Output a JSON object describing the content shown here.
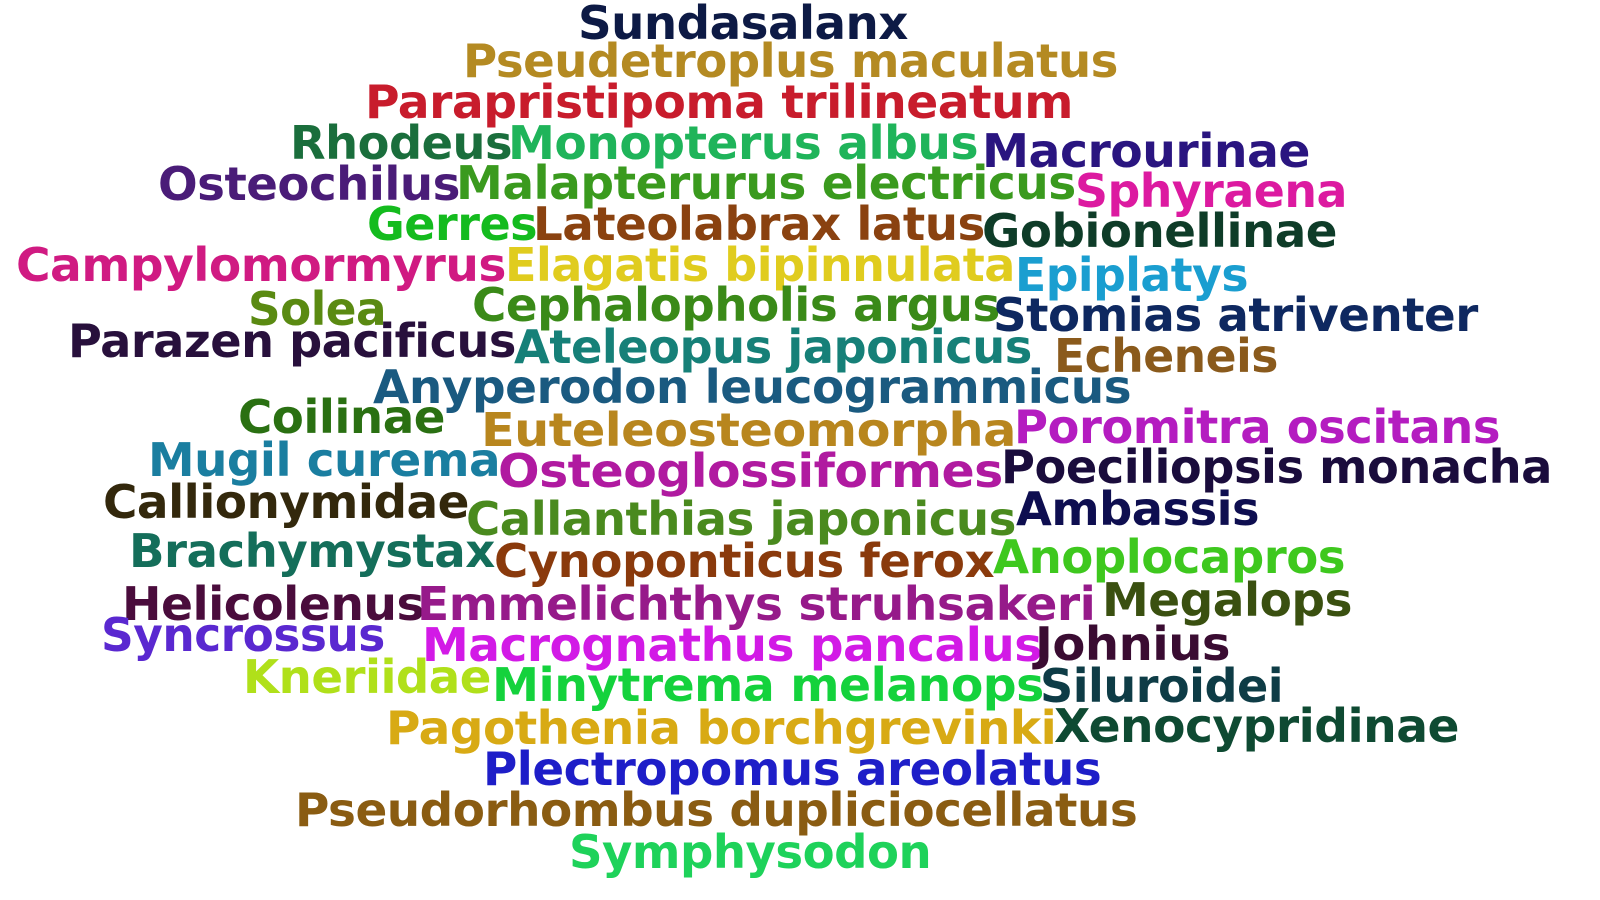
{
  "words": [
    {
      "text": "Sundasalanx",
      "color": "#0d1a45"
    },
    {
      "text": "Pseudetroplus maculatus",
      "color": "#b48a22"
    },
    {
      "text": "Parapristipoma trilineatum",
      "color": "#c81c2c"
    },
    {
      "text": "Rhodeus",
      "color": "#1a6e3c"
    },
    {
      "text": "Monopterus albus",
      "color": "#1fb45a"
    },
    {
      "text": "Macrourinae",
      "color": "#2a1580"
    },
    {
      "text": "Osteochilus",
      "color": "#4a1c78"
    },
    {
      "text": "Malapterurus electricus",
      "color": "#3a9a1e"
    },
    {
      "text": "Sphyraena",
      "color": "#dc1aa0"
    },
    {
      "text": "Gerres",
      "color": "#14bb1e"
    },
    {
      "text": "Lateolabrax latus",
      "color": "#8a4210"
    },
    {
      "text": "Gobionellinae",
      "color": "#0e3c28"
    },
    {
      "text": "Campylomormyrus",
      "color": "#d01a82"
    },
    {
      "text": "Elagatis bipinnulata",
      "color": "#e0cc1e"
    },
    {
      "text": "Epiplatys",
      "color": "#1a9ed0"
    },
    {
      "text": "Solea",
      "color": "#5a8a12"
    },
    {
      "text": "Cephalopholis argus",
      "color": "#3a8a18"
    },
    {
      "text": "Stomias atriventer",
      "color": "#0e2860"
    },
    {
      "text": "Parazen pacificus",
      "color": "#28103c"
    },
    {
      "text": "Ateleopus japonicus",
      "color": "#168078"
    },
    {
      "text": "Echeneis",
      "color": "#8a5a1c"
    },
    {
      "text": "Anyperodon leucogrammicus",
      "color": "#1a5a80"
    },
    {
      "text": "Coilinae",
      "color": "#2a7012"
    },
    {
      "text": "Euteleosteomorpha",
      "color": "#b8861e"
    },
    {
      "text": "Poromitra oscitans",
      "color": "#b41cc0"
    },
    {
      "text": "Mugil curema",
      "color": "#1a7ea0"
    },
    {
      "text": "Osteoglossiformes",
      "color": "#b01aa0"
    },
    {
      "text": "Poeciliopsis monacha",
      "color": "#1a0c3c"
    },
    {
      "text": "Callionymidae",
      "color": "#33280c"
    },
    {
      "text": "Callanthias japonicus",
      "color": "#4a8a1e"
    },
    {
      "text": "Ambassis",
      "color": "#0e0e50"
    },
    {
      "text": "Brachymystax",
      "color": "#146e5a"
    },
    {
      "text": "Cynoponticus ferox",
      "color": "#8a3a0c"
    },
    {
      "text": "Anoplocapros",
      "color": "#3ec81e"
    },
    {
      "text": "Helicolenus",
      "color": "#4a0c3c"
    },
    {
      "text": "Emmelichthys struhsakeri",
      "color": "#961a8a"
    },
    {
      "text": "Megalops",
      "color": "#3a5010"
    },
    {
      "text": "Syncrossus",
      "color": "#5a28d0"
    },
    {
      "text": "Macrognathus pancalus",
      "color": "#d21ae6"
    },
    {
      "text": "Johnius",
      "color": "#3a0c32"
    },
    {
      "text": "Kneriidae",
      "color": "#b0e01a"
    },
    {
      "text": "Minytrema melanops",
      "color": "#14d23c"
    },
    {
      "text": "Siluroidei",
      "color": "#0e3c46"
    },
    {
      "text": "Pagothenia borchgrevinki",
      "color": "#d8aa14"
    },
    {
      "text": "Xenocypridinae",
      "color": "#0e4a32"
    },
    {
      "text": "Plectropomus areolatus",
      "color": "#1e1ec8"
    },
    {
      "text": "Pseudorhombus dupliciocellatus",
      "color": "#8a5c12"
    },
    {
      "text": "Symphysodon",
      "color": "#1ed25a"
    }
  ]
}
